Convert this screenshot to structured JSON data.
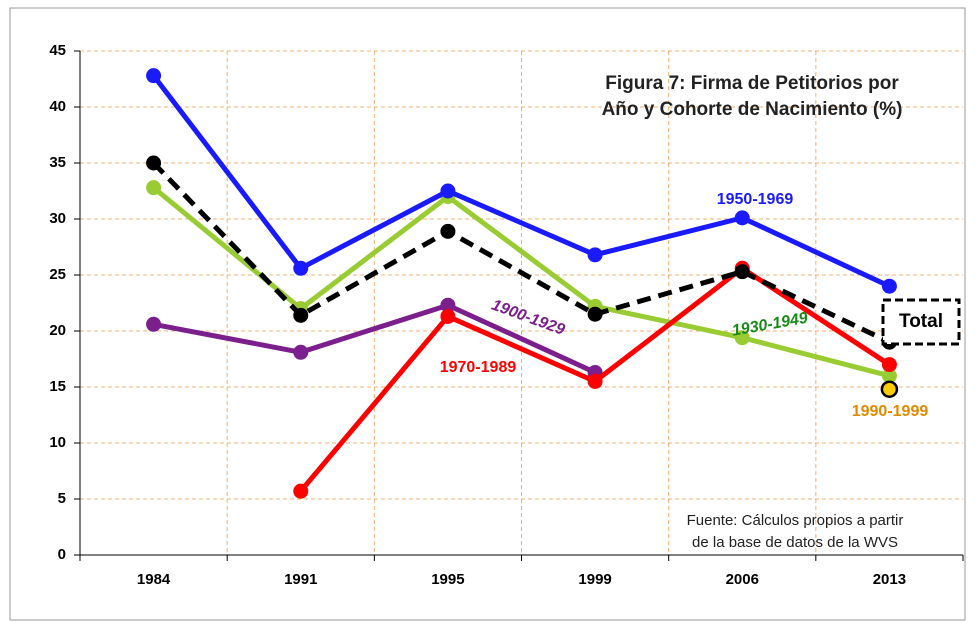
{
  "chart_data": {
    "type": "line",
    "title": [
      "Figura 7: Firma de Petitorios por",
      "Año y Cohorte de Nacimiento (%)"
    ],
    "source": [
      "Fuente: Cálculos propios a partir",
      "de la base de datos de la WVS"
    ],
    "categories": [
      "1984",
      "1991",
      "1995",
      "1999",
      "2006",
      "2013"
    ],
    "ylim": [
      0,
      45
    ],
    "yticks": [
      0,
      5,
      10,
      15,
      20,
      25,
      30,
      35,
      40,
      45
    ],
    "grid": true,
    "series": [
      {
        "name": "1900-1929",
        "color": "#7b1f8c",
        "label_color": "#7b1f8c",
        "values": [
          20.6,
          18.1,
          22.3,
          16.3,
          null,
          null
        ]
      },
      {
        "name": "1930-1949",
        "color": "#99cc33",
        "label_color": "#1a8a1a",
        "values": [
          32.8,
          22.0,
          32.0,
          22.2,
          19.4,
          16.0
        ]
      },
      {
        "name": "1970-1989",
        "color": "#ff0000",
        "label_color": "#ff0000",
        "values": [
          null,
          5.7,
          21.3,
          15.5,
          25.6,
          17.0
        ]
      },
      {
        "name": "1950-1969",
        "color": "#1a1aff",
        "label_color": "#1a1aff",
        "values": [
          42.8,
          25.6,
          32.5,
          26.8,
          30.1,
          24.0
        ]
      },
      {
        "name": "Total",
        "color": "#000000",
        "label_color": "#000000",
        "dashed": true,
        "values": [
          35.0,
          21.4,
          28.9,
          21.5,
          25.3,
          19.0
        ]
      },
      {
        "name": "1990-1999",
        "color": "#ffcc00",
        "label_color": "#e08a00",
        "values": [
          null,
          null,
          null,
          null,
          null,
          14.8
        ]
      }
    ]
  }
}
